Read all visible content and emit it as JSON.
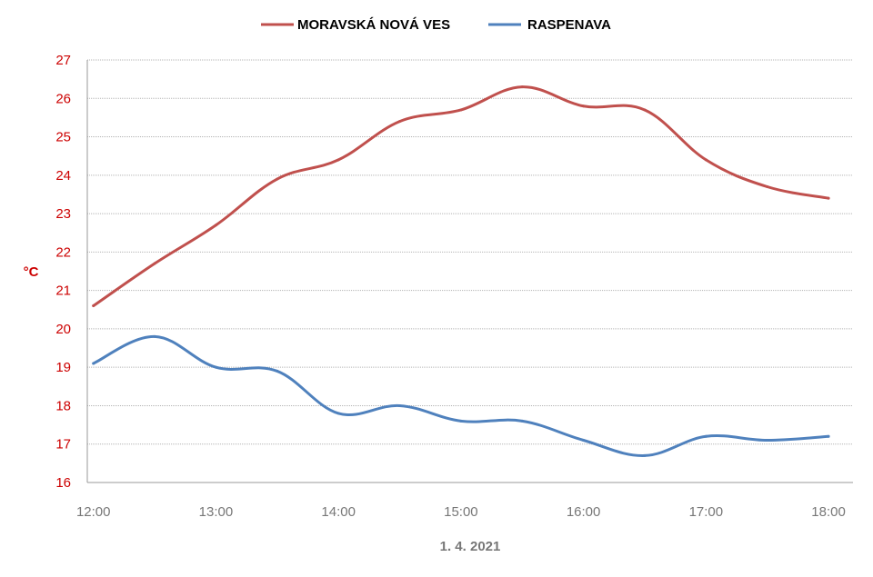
{
  "chart_data": {
    "type": "line",
    "xlabel": "1. 4. 2021",
    "ylabel": "°C",
    "x_ticks": [
      "12:00",
      "13:00",
      "14:00",
      "15:00",
      "16:00",
      "17:00",
      "18:00"
    ],
    "x": [
      12.0,
      12.5,
      13.0,
      13.5,
      14.0,
      14.5,
      15.0,
      15.5,
      16.0,
      16.5,
      17.0,
      17.5,
      18.0
    ],
    "xlim": [
      11.95,
      18.2
    ],
    "ylim": [
      16,
      27
    ],
    "y_ticks": [
      16,
      17,
      18,
      19,
      20,
      21,
      22,
      23,
      24,
      25,
      26,
      27
    ],
    "grid": true,
    "legend_position": "top",
    "series": [
      {
        "name": "MORAVSKÁ NOVÁ VES",
        "color": "#c0504d",
        "values": [
          20.6,
          21.7,
          22.7,
          23.9,
          24.4,
          25.4,
          25.7,
          26.3,
          25.8,
          25.7,
          24.4,
          23.7,
          23.4
        ]
      },
      {
        "name": "RASPENAVA",
        "color": "#4f81bd",
        "values": [
          19.1,
          19.8,
          19.0,
          18.9,
          17.8,
          18.0,
          17.6,
          17.6,
          17.1,
          16.7,
          17.2,
          17.1,
          17.2
        ]
      }
    ]
  }
}
